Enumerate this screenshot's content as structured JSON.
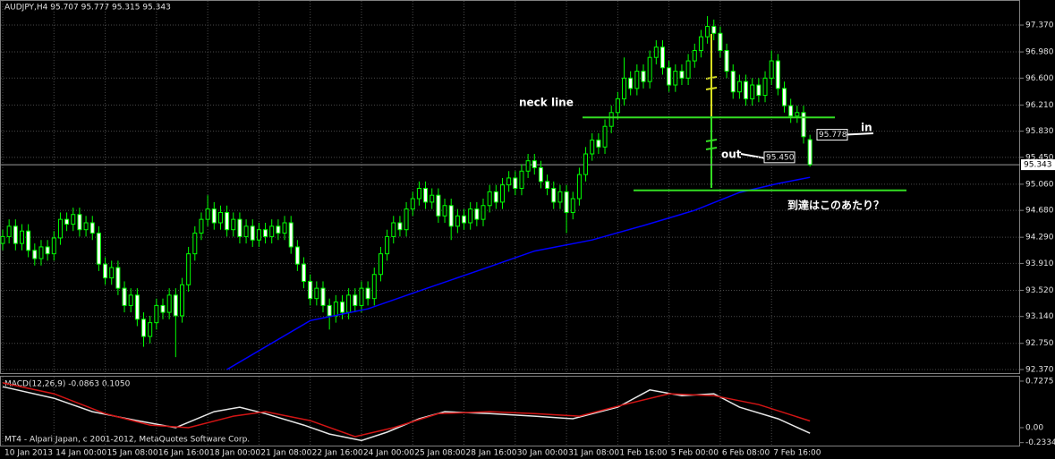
{
  "chart_data": [
    {
      "type": "candlestick",
      "title": "AUDJPY,H4  95.707 95.777 95.315 95.343",
      "open": [
        94.2,
        94.3,
        94.45,
        94.2,
        94.38,
        94.1,
        93.98,
        94.15,
        94.05,
        94.28,
        94.55,
        94.48,
        94.62,
        94.4,
        94.5,
        94.35,
        93.9,
        93.7,
        93.85,
        93.55,
        93.3,
        93.45,
        93.1,
        92.85,
        93.05,
        93.3,
        93.2,
        93.45,
        93.15,
        93.6,
        94.05,
        94.35,
        94.55,
        94.7,
        94.5,
        94.65,
        94.4,
        94.55,
        94.3,
        94.45,
        94.25,
        94.4,
        94.3,
        94.45,
        94.35,
        94.5,
        94.15,
        93.9,
        93.65,
        93.4,
        93.55,
        93.3,
        93.15,
        93.35,
        93.2,
        93.45,
        93.3,
        93.55,
        93.4,
        93.75,
        94.05,
        94.3,
        94.5,
        94.4,
        94.7,
        94.85,
        95.0,
        94.8,
        94.9,
        94.6,
        94.75,
        94.45,
        94.6,
        94.5,
        94.7,
        94.55,
        94.75,
        94.95,
        94.8,
        95.05,
        95.15,
        95.0,
        95.25,
        95.4,
        95.3,
        95.1,
        95.0,
        94.8,
        94.95,
        94.65,
        94.85,
        95.2,
        95.5,
        95.7,
        95.6,
        95.9,
        96.1,
        96.3,
        96.6,
        96.45,
        96.7,
        96.55,
        96.9,
        97.05,
        96.75,
        96.5,
        96.7,
        96.6,
        96.85,
        97.0,
        97.2,
        97.35,
        97.25,
        97.0,
        96.7,
        96.4,
        96.55,
        96.3,
        96.5,
        96.35,
        96.6,
        96.85,
        96.45,
        96.2,
        96.05,
        96.1,
        95.707
      ],
      "high": [
        94.4,
        94.55,
        94.55,
        94.48,
        94.48,
        94.2,
        94.25,
        94.25,
        94.38,
        94.65,
        94.65,
        94.72,
        94.72,
        94.6,
        94.6,
        94.45,
        94.0,
        93.95,
        93.95,
        93.65,
        93.55,
        93.55,
        93.2,
        93.15,
        93.4,
        93.4,
        93.55,
        93.55,
        93.7,
        94.15,
        94.45,
        94.65,
        94.9,
        94.8,
        94.75,
        94.75,
        94.65,
        94.65,
        94.55,
        94.55,
        94.5,
        94.5,
        94.55,
        94.55,
        94.6,
        94.6,
        94.25,
        94.0,
        93.75,
        93.65,
        93.65,
        93.4,
        93.45,
        93.45,
        93.55,
        93.55,
        93.65,
        93.65,
        93.85,
        94.15,
        94.4,
        94.6,
        94.6,
        94.8,
        94.95,
        95.1,
        95.1,
        95.0,
        95.0,
        94.85,
        94.85,
        94.7,
        94.7,
        94.8,
        94.8,
        94.85,
        95.05,
        95.05,
        95.15,
        95.25,
        95.25,
        95.35,
        95.5,
        95.5,
        95.4,
        95.2,
        95.1,
        95.05,
        95.05,
        94.95,
        95.3,
        95.6,
        95.8,
        95.8,
        96.0,
        96.2,
        96.4,
        96.9,
        96.7,
        96.8,
        96.8,
        97.0,
        97.15,
        97.15,
        96.85,
        96.8,
        96.8,
        96.95,
        97.1,
        97.3,
        97.5,
        97.45,
        97.35,
        97.1,
        96.8,
        96.65,
        96.65,
        96.6,
        96.6,
        96.7,
        97.0,
        96.95,
        96.55,
        96.3,
        96.2,
        96.2,
        95.777
      ],
      "low": [
        94.1,
        94.2,
        94.1,
        94.1,
        94.0,
        93.88,
        93.88,
        93.95,
        93.95,
        94.18,
        94.38,
        94.38,
        94.3,
        94.3,
        94.25,
        93.8,
        93.6,
        93.6,
        93.45,
        93.2,
        93.2,
        93.0,
        92.7,
        92.75,
        92.95,
        93.1,
        93.1,
        92.55,
        93.05,
        93.5,
        93.95,
        94.25,
        94.45,
        94.4,
        94.4,
        94.3,
        94.3,
        94.2,
        94.2,
        94.15,
        94.15,
        94.2,
        94.2,
        94.25,
        94.25,
        94.05,
        93.8,
        93.55,
        93.3,
        93.3,
        93.2,
        92.95,
        93.05,
        93.1,
        93.1,
        93.2,
        93.2,
        93.3,
        93.3,
        93.65,
        93.95,
        94.2,
        94.3,
        94.3,
        94.6,
        94.75,
        94.7,
        94.7,
        94.5,
        94.5,
        94.25,
        94.35,
        94.4,
        94.4,
        94.45,
        94.45,
        94.65,
        94.7,
        94.7,
        94.95,
        94.9,
        94.9,
        95.15,
        95.2,
        95.0,
        94.9,
        94.7,
        94.7,
        94.35,
        94.55,
        94.75,
        95.1,
        95.4,
        95.5,
        95.5,
        95.8,
        96.0,
        96.2,
        96.35,
        96.35,
        96.45,
        96.45,
        96.8,
        96.65,
        96.4,
        96.4,
        96.5,
        96.5,
        96.75,
        96.9,
        97.1,
        97.15,
        96.9,
        96.6,
        96.3,
        96.3,
        96.2,
        96.2,
        96.25,
        96.25,
        96.5,
        96.35,
        96.1,
        95.95,
        95.95,
        95.65,
        95.315
      ],
      "close": [
        94.3,
        94.45,
        94.2,
        94.38,
        94.1,
        93.98,
        94.15,
        94.05,
        94.28,
        94.55,
        94.48,
        94.62,
        94.4,
        94.5,
        94.35,
        93.9,
        93.7,
        93.85,
        93.55,
        93.3,
        93.45,
        93.1,
        92.85,
        93.05,
        93.3,
        93.2,
        93.45,
        93.15,
        93.6,
        94.05,
        94.35,
        94.55,
        94.7,
        94.5,
        94.65,
        94.4,
        94.55,
        94.3,
        94.45,
        94.25,
        94.4,
        94.3,
        94.45,
        94.35,
        94.5,
        94.15,
        93.9,
        93.65,
        93.4,
        93.55,
        93.3,
        93.15,
        93.35,
        93.2,
        93.45,
        93.3,
        93.55,
        93.4,
        93.75,
        94.05,
        94.3,
        94.5,
        94.4,
        94.7,
        94.85,
        95.0,
        94.8,
        94.9,
        94.6,
        94.75,
        94.45,
        94.6,
        94.5,
        94.7,
        94.55,
        94.75,
        94.95,
        94.8,
        95.05,
        95.15,
        95.0,
        95.25,
        95.4,
        95.3,
        95.1,
        95.0,
        94.8,
        94.95,
        94.65,
        94.85,
        95.2,
        95.5,
        95.7,
        95.6,
        95.9,
        96.1,
        96.3,
        96.6,
        96.45,
        96.7,
        96.55,
        96.9,
        97.05,
        96.75,
        96.5,
        96.7,
        96.6,
        96.85,
        97.0,
        97.2,
        97.35,
        97.25,
        97.0,
        96.7,
        96.4,
        96.55,
        96.3,
        96.5,
        96.35,
        96.6,
        96.85,
        96.45,
        96.2,
        96.05,
        96.1,
        95.75,
        95.343
      ],
      "ma": {
        "color": "#0000ff",
        "x": [
          35,
          48,
          57,
          65,
          75,
          83,
          92,
          100,
          108,
          115,
          121,
          126
        ],
        "values": [
          92.37,
          93.08,
          93.25,
          93.51,
          93.83,
          94.09,
          94.25,
          94.46,
          94.68,
          94.94,
          95.07,
          95.16
        ]
      },
      "xlim": [
        -0.42,
        158.8
      ],
      "xticks": [
        {
          "value": 0,
          "label": "10 Jan 2013"
        },
        {
          "value": 8,
          "label": "14 Jan 00:00"
        },
        {
          "value": 16,
          "label": "15 Jan 08:00"
        },
        {
          "value": 24,
          "label": "16 Jan 16:00"
        },
        {
          "value": 32,
          "label": "18 Jan 00:00"
        },
        {
          "value": 40,
          "label": "21 Jan 08:00"
        },
        {
          "value": 48,
          "label": "22 Jan 16:00"
        },
        {
          "value": 56,
          "label": "24 Jan 00:00"
        },
        {
          "value": 64,
          "label": "25 Jan 08:00"
        },
        {
          "value": 72,
          "label": "28 Jan 16:00"
        },
        {
          "value": 80,
          "label": "30 Jan 00:00"
        },
        {
          "value": 88,
          "label": "31 Jan 08:00"
        },
        {
          "value": 96,
          "label": "1 Feb 16:00"
        },
        {
          "value": 104,
          "label": "5 Feb 00:00"
        },
        {
          "value": 112,
          "label": "6 Feb 08:00"
        },
        {
          "value": 120,
          "label": "7 Feb 16:00"
        }
      ],
      "ylim": [
        92.305,
        97.734
      ],
      "yticks": [
        {
          "value": 97.37,
          "label": "97.370"
        },
        {
          "value": 96.98,
          "label": "96.980"
        },
        {
          "value": 96.6,
          "label": "96.600"
        },
        {
          "value": 96.21,
          "label": "96.210"
        },
        {
          "value": 95.83,
          "label": "95.830"
        },
        {
          "value": 95.45,
          "label": "95.450"
        },
        {
          "value": 95.06,
          "label": "95.060"
        },
        {
          "value": 94.68,
          "label": "94.680"
        },
        {
          "value": 94.29,
          "label": "94.290"
        },
        {
          "value": 93.91,
          "label": "93.910"
        },
        {
          "value": 93.52,
          "label": "93.520"
        },
        {
          "value": 93.14,
          "label": "93.140"
        },
        {
          "value": 92.75,
          "label": "92.750"
        },
        {
          "value": 92.37,
          "label": "92.370"
        }
      ],
      "grid": true,
      "levels": [
        96.03,
        94.97
      ],
      "annotations": [
        "neck line",
        "out",
        "in",
        "到達はこのあたり？"
      ],
      "price_labels": [
        95.778,
        {
          "value": 95.45,
          "label": "95.450"
        }
      ]
    },
    {
      "type": "line",
      "title": "MACD(12,26,9) -0.0863 0.1050",
      "xlim": [
        -0.42,
        158.8
      ],
      "ylim": [
        -0.28,
        0.811
      ],
      "yticks": [
        0.7275,
        {
          "value": 0,
          "label": "0.00"
        },
        -0.2334
      ],
      "series": [
        {
          "color": "#e6e6e6",
          "x": [
            0,
            8,
            14,
            21,
            27,
            33,
            37,
            41,
            47,
            51,
            56,
            60,
            65,
            69,
            76,
            83,
            89,
            96,
            101,
            106,
            111,
            115,
            121,
            126
          ],
          "values": [
            0.64,
            0.46,
            0.25,
            0.11,
            0.0,
            0.25,
            0.32,
            0.22,
            0.04,
            -0.1,
            -0.2,
            -0.07,
            0.14,
            0.25,
            0.22,
            0.18,
            0.14,
            0.32,
            0.59,
            0.5,
            0.53,
            0.32,
            0.14,
            -0.0863
          ]
        },
        {
          "color": "#d21414",
          "x": [
            0,
            8,
            16,
            23,
            29,
            36,
            41,
            48,
            55,
            61,
            68,
            76,
            83,
            90,
            97,
            104,
            111,
            118,
            126
          ],
          "values": [
            0.7,
            0.53,
            0.22,
            0.04,
            0.0,
            0.18,
            0.25,
            0.11,
            -0.14,
            0.0,
            0.22,
            0.25,
            0.22,
            0.18,
            0.36,
            0.53,
            0.5,
            0.36,
            0.105
          ]
        }
      ]
    }
  ],
  "copyright": "MT4 - Alpari Japan, c 2001-2012, MetaQuotes Software Corp."
}
